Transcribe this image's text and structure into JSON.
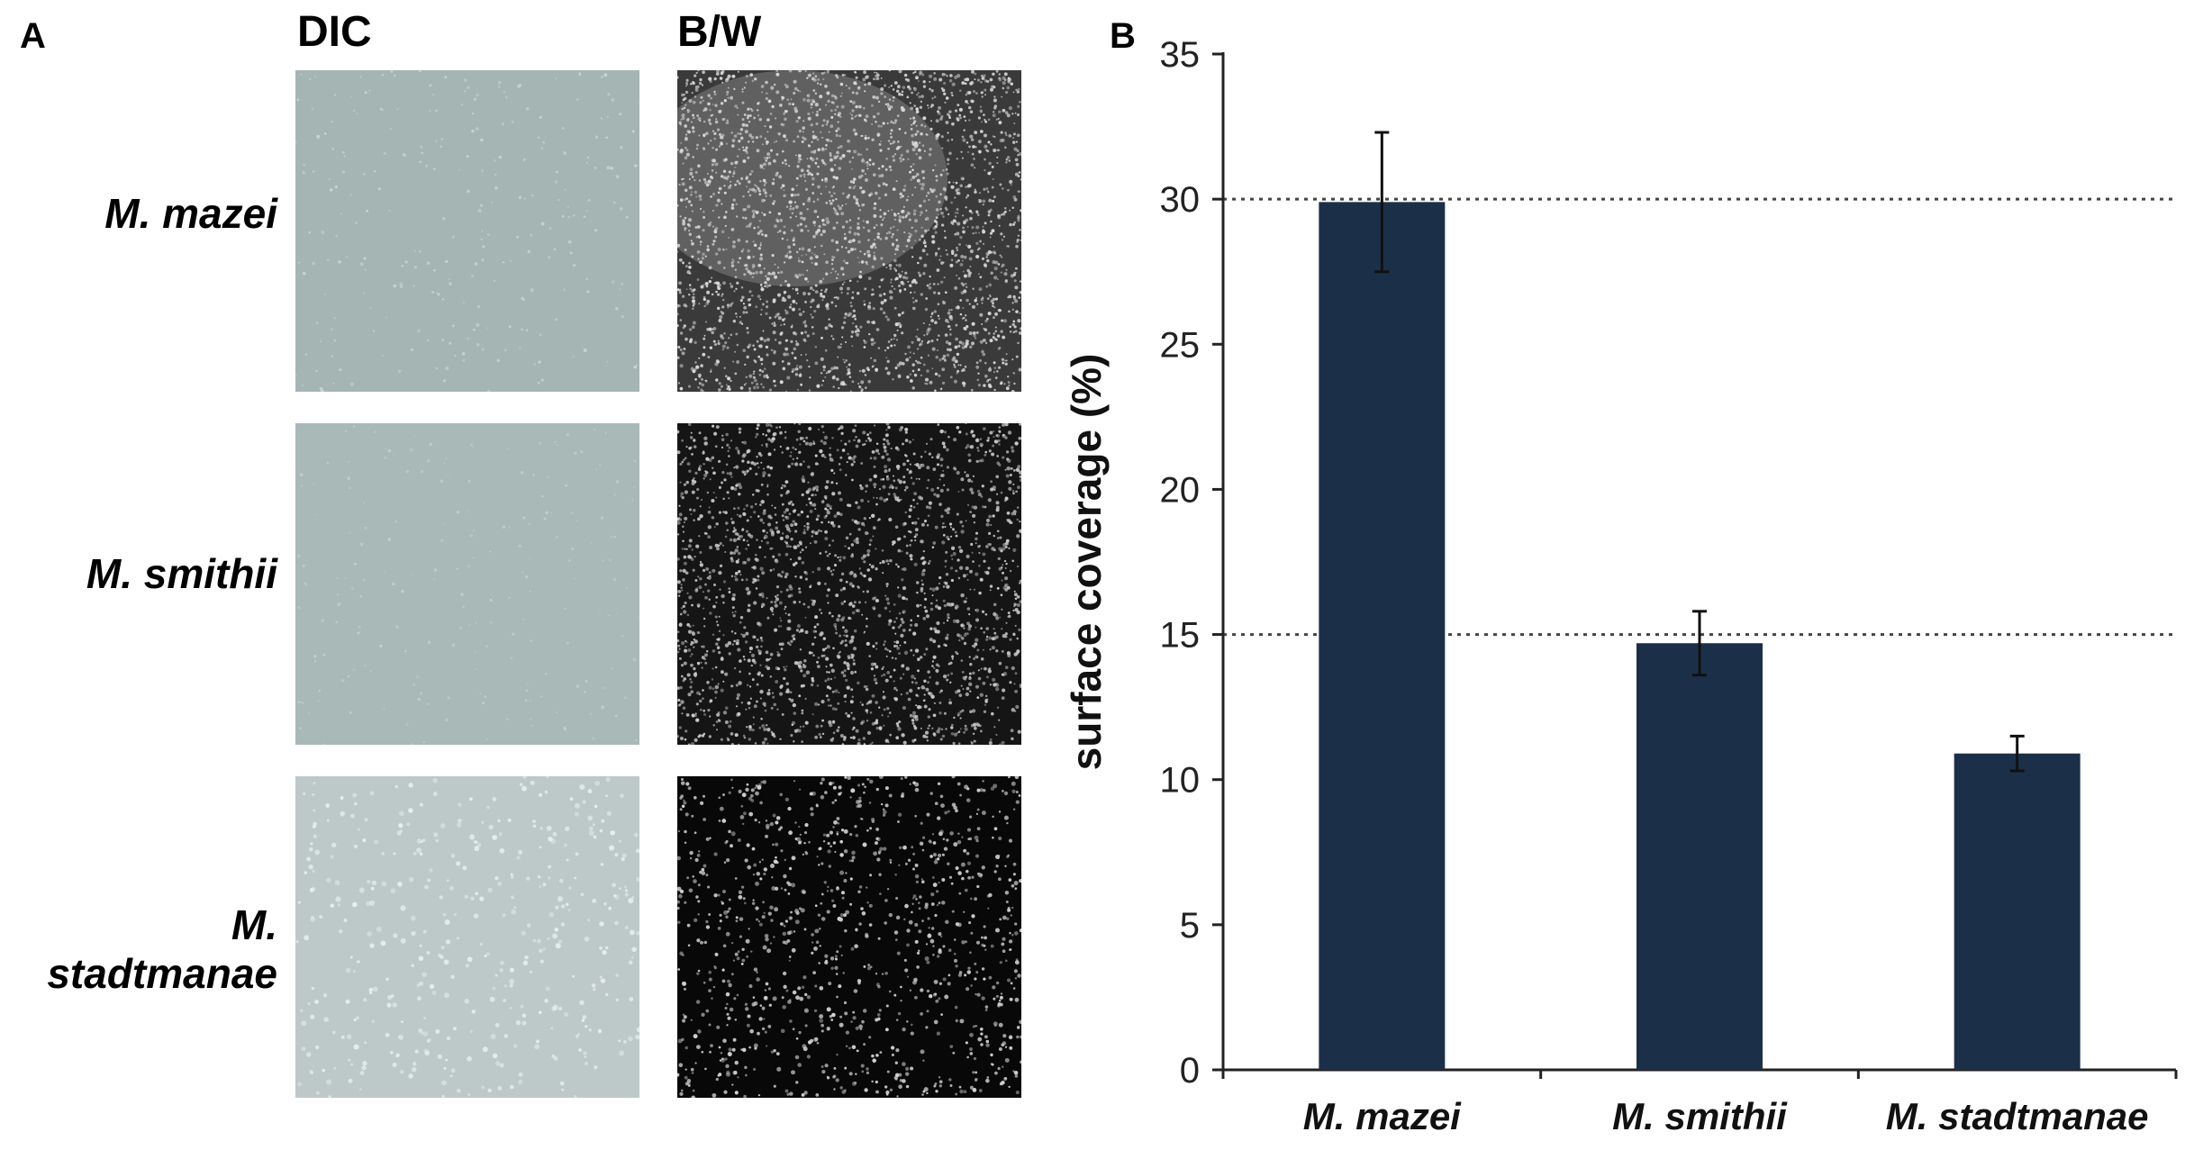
{
  "panel_a": {
    "letter": "A",
    "columns": [
      "DIC",
      "B/W"
    ],
    "rows": [
      "M. mazei",
      "M. smithii",
      "M. stadtmanae"
    ]
  },
  "panel_b": {
    "letter": "B"
  },
  "colors": {
    "bar": "#1b3048",
    "dic_tile": "#9fb0b0",
    "bw_tile": "#1a1a1a"
  },
  "chart_data": {
    "type": "bar",
    "categories": [
      "M. mazei",
      "M. smithii",
      "M. stadtmanae"
    ],
    "values": [
      29.9,
      14.7,
      10.9
    ],
    "errors": [
      2.4,
      1.1,
      0.6
    ],
    "xlabel": "",
    "ylabel": "surface coverage (%)",
    "ylim": [
      0,
      35
    ],
    "yticks": [
      0,
      5,
      10,
      15,
      20,
      25,
      30,
      35
    ],
    "reference_lines": [
      15,
      30
    ],
    "grid": false
  }
}
